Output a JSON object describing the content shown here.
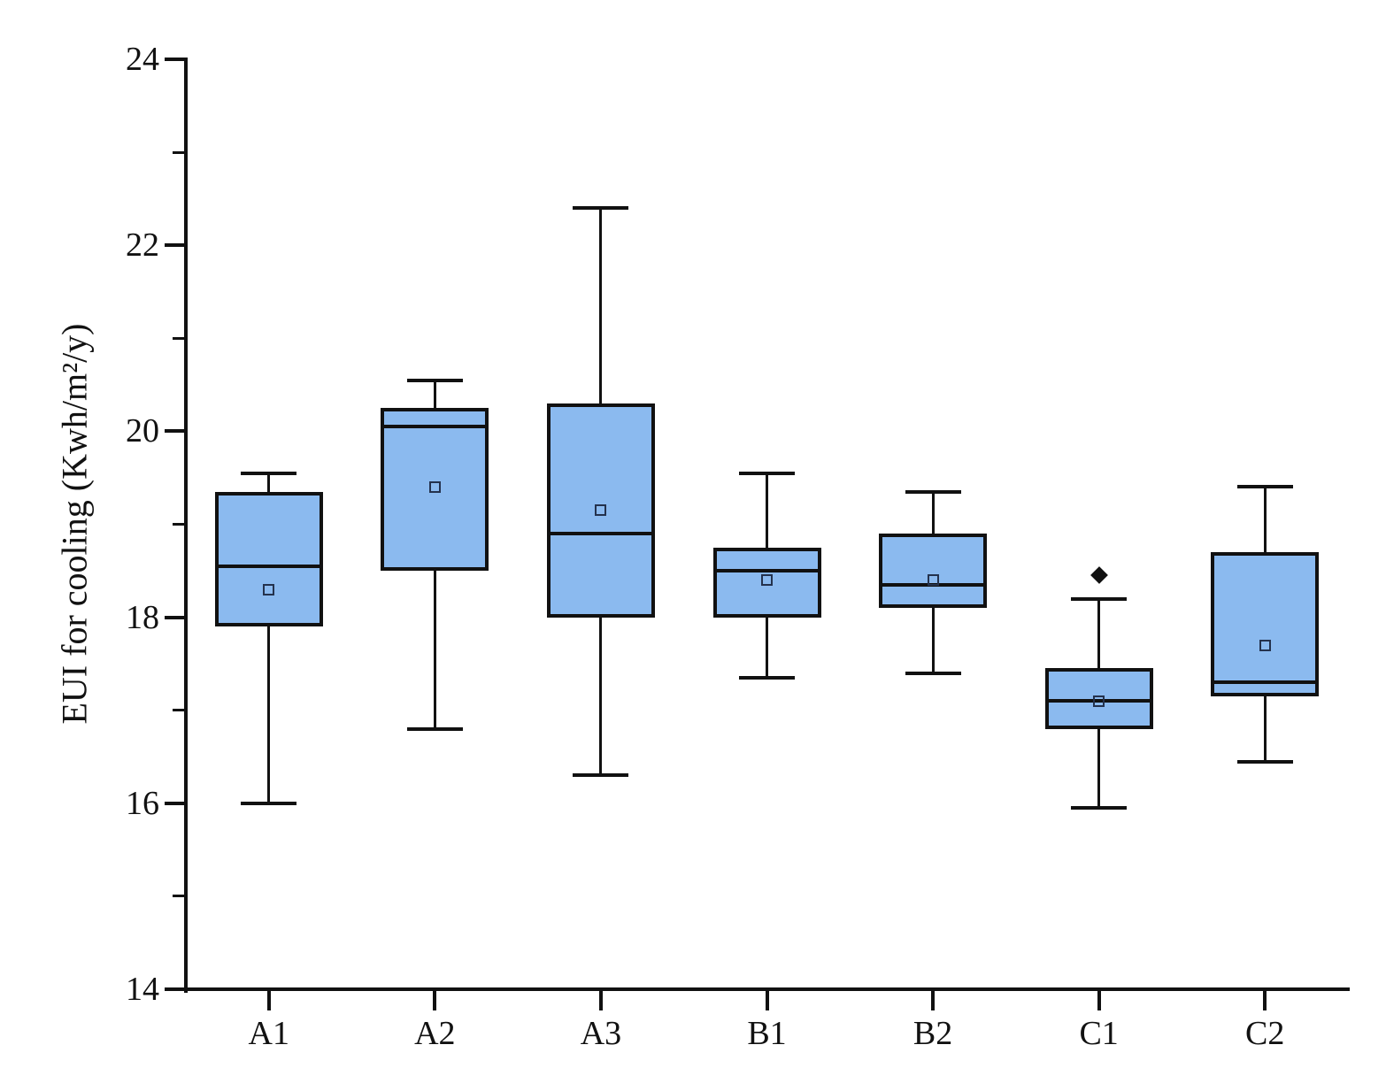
{
  "chart_data": {
    "type": "box",
    "title": "",
    "xlabel": "",
    "ylabel": "EUI for cooling (Kwh/m²/y)",
    "ylim": [
      14,
      24
    ],
    "y_major_ticks": [
      14,
      16,
      18,
      20,
      22,
      24
    ],
    "y_minor_ticks": [
      15,
      17,
      19,
      21,
      23
    ],
    "grid": false,
    "legend_position": "none",
    "categories": [
      "A1",
      "A2",
      "A3",
      "B1",
      "B2",
      "C1",
      "C2"
    ],
    "series": [
      {
        "category": "A1",
        "whisker_low": 16.0,
        "q1": 17.9,
        "median": 18.55,
        "mean": 18.3,
        "q3": 19.35,
        "whisker_high": 19.55,
        "outliers": []
      },
      {
        "category": "A2",
        "whisker_low": 16.8,
        "q1": 18.5,
        "median": 20.05,
        "mean": 19.4,
        "q3": 20.25,
        "whisker_high": 20.55,
        "outliers": []
      },
      {
        "category": "A3",
        "whisker_low": 16.3,
        "q1": 18.0,
        "median": 18.9,
        "mean": 19.15,
        "q3": 20.3,
        "whisker_high": 22.4,
        "outliers": []
      },
      {
        "category": "B1",
        "whisker_low": 17.35,
        "q1": 18.0,
        "median": 18.5,
        "mean": 18.4,
        "q3": 18.75,
        "whisker_high": 19.55,
        "outliers": []
      },
      {
        "category": "B2",
        "whisker_low": 17.4,
        "q1": 18.1,
        "median": 18.35,
        "mean": 18.4,
        "q3": 18.9,
        "whisker_high": 19.35,
        "outliers": []
      },
      {
        "category": "C1",
        "whisker_low": 15.95,
        "q1": 16.8,
        "median": 17.1,
        "mean": 17.1,
        "q3": 17.45,
        "whisker_high": 18.2,
        "outliers": [
          18.45
        ]
      },
      {
        "category": "C2",
        "whisker_low": 16.45,
        "q1": 17.15,
        "median": 17.3,
        "mean": 17.7,
        "q3": 18.7,
        "whisker_high": 19.4,
        "outliers": []
      }
    ],
    "colors": {
      "box_fill": "#8bbaef",
      "box_border": "#111111",
      "median": "#111111",
      "whisker": "#111111",
      "mean_marker_border": "#24324d",
      "outlier": "#111111",
      "axis": "#111111",
      "background": "#ffffff"
    }
  }
}
